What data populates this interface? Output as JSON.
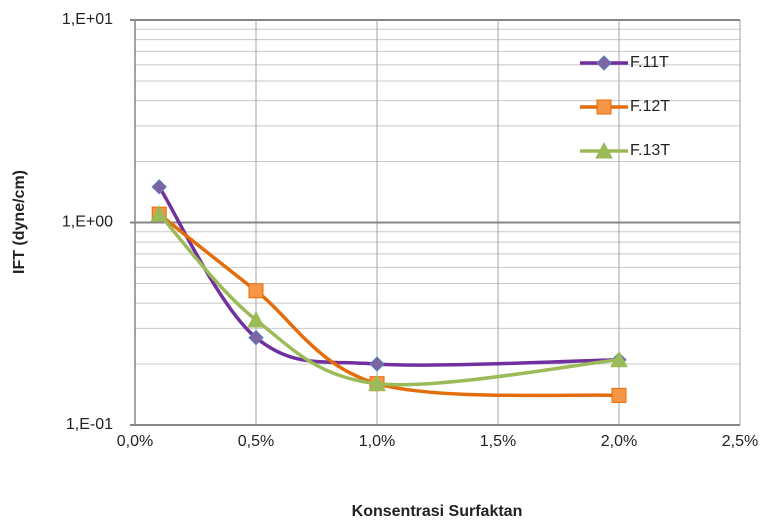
{
  "chart_data": {
    "type": "line",
    "x_label": "Konsentrasi Surfaktan",
    "y_label": "IFT (dyne/cm)",
    "x": [
      0.001,
      0.005,
      0.01,
      0.02
    ],
    "series": [
      {
        "name": "F.11T",
        "color": "#7030a0",
        "marker": "diamond",
        "values": [
          1.5,
          0.27,
          0.2,
          0.21
        ]
      },
      {
        "name": "F.12T",
        "color": "#e46c0a",
        "marker": "square",
        "values": [
          1.1,
          0.46,
          0.16,
          0.14
        ]
      },
      {
        "name": "F.13T",
        "color": "#9bbb59",
        "marker": "triangle",
        "values": [
          1.1,
          0.33,
          0.16,
          0.21
        ]
      }
    ],
    "xlim": [
      0,
      0.025
    ],
    "xticks": [
      {
        "value": 0,
        "label": "0,0%"
      },
      {
        "value": 0.005,
        "label": "0,5%"
      },
      {
        "value": 0.01,
        "label": "1,0%"
      },
      {
        "value": 0.015,
        "label": "1,5%"
      },
      {
        "value": 0.02,
        "label": "2,0%"
      },
      {
        "value": 0.025,
        "label": "2,5%"
      }
    ],
    "ylim": [
      0.1,
      10
    ],
    "yticks": [
      {
        "value": 0.1,
        "label": "1,E-01"
      },
      {
        "value": 1,
        "label": "1,E+00"
      },
      {
        "value": 10,
        "label": "1,E+01"
      }
    ],
    "yminorticks": [
      0.2,
      0.3,
      0.4,
      0.5,
      0.6,
      0.7,
      0.8,
      0.9,
      2,
      3,
      4,
      5,
      6,
      7,
      8,
      9
    ],
    "log_y": true,
    "grid": true,
    "smooth": true,
    "legend": "right"
  }
}
